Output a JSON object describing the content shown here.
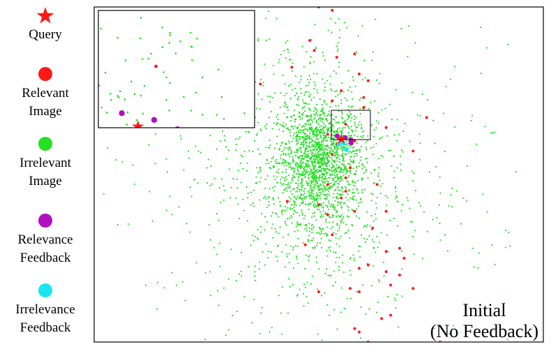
{
  "colors": {
    "query": "#ff1a1a",
    "relevant": "#ff1a1a",
    "irrelevant": "#22e022",
    "relevance_feedback": "#b010c0",
    "irrelevance_feedback": "#19e6ee"
  },
  "legend": {
    "items": [
      {
        "label_lines": [
          "Query"
        ],
        "marker": "star",
        "color": "#ff1a1a"
      },
      {
        "label_lines": [
          "Relevant",
          "Image"
        ],
        "marker": "circle",
        "color": "#ff1a1a"
      },
      {
        "label_lines": [
          "Irrelevant",
          "Image"
        ],
        "marker": "circle",
        "color": "#22e022"
      },
      {
        "label_lines": [
          "Relevance",
          "Feedback"
        ],
        "marker": "circle",
        "color": "#b010c0"
      },
      {
        "label_lines": [
          "Irrelevance",
          "Feedback"
        ],
        "marker": "circle",
        "color": "#19e6ee"
      }
    ]
  },
  "chart_data": {
    "type": "scatter",
    "title_lines": [
      "Initial",
      "(No Feedback)"
    ],
    "xlabel": "",
    "ylabel": "",
    "axes_ticks": false,
    "grid": false,
    "inset": {
      "shows": "zoomed view of region around query",
      "placement": "top-left"
    },
    "query": {
      "x": 0.55,
      "y": 0.605
    },
    "relevant": [
      [
        0.5,
        1.0
      ],
      [
        0.53,
        0.99
      ],
      [
        0.48,
        0.9
      ],
      [
        0.49,
        0.87
      ],
      [
        0.58,
        0.86
      ],
      [
        0.54,
        0.85
      ],
      [
        0.44,
        0.82
      ],
      [
        0.59,
        0.8
      ],
      [
        0.37,
        0.77
      ],
      [
        0.61,
        0.78
      ],
      [
        0.55,
        0.75
      ],
      [
        0.6,
        0.73
      ],
      [
        0.53,
        0.72
      ],
      [
        0.6,
        0.7
      ],
      [
        0.56,
        0.65
      ],
      [
        0.74,
        0.67
      ],
      [
        0.65,
        0.64
      ],
      [
        0.52,
        0.62
      ],
      [
        0.58,
        0.6
      ],
      [
        0.54,
        0.59
      ],
      [
        0.53,
        0.56
      ],
      [
        0.71,
        0.57
      ],
      [
        0.57,
        0.52
      ],
      [
        0.56,
        0.49
      ],
      [
        0.52,
        0.47
      ],
      [
        0.56,
        0.45
      ],
      [
        0.63,
        0.47
      ],
      [
        0.55,
        0.43
      ],
      [
        0.65,
        0.39
      ],
      [
        0.58,
        0.39
      ],
      [
        0.43,
        0.42
      ],
      [
        0.5,
        0.41
      ],
      [
        0.52,
        0.38
      ],
      [
        0.62,
        0.34
      ],
      [
        0.53,
        0.32
      ],
      [
        0.68,
        0.28
      ],
      [
        0.47,
        0.29
      ],
      [
        0.65,
        0.27
      ],
      [
        0.69,
        0.25
      ],
      [
        0.61,
        0.23
      ],
      [
        0.65,
        0.21
      ],
      [
        0.68,
        0.2
      ],
      [
        0.59,
        0.22
      ],
      [
        0.66,
        0.17
      ],
      [
        0.71,
        0.16
      ],
      [
        0.57,
        0.16
      ],
      [
        0.59,
        0.15
      ],
      [
        0.5,
        0.15
      ],
      [
        0.66,
        0.08
      ],
      [
        0.64,
        0.07
      ],
      [
        0.58,
        0.04
      ],
      [
        0.59,
        0.03
      ],
      [
        0.61,
        0.0
      ],
      [
        0.77,
        0.0
      ]
    ],
    "relevance_feedback": [
      [
        0.541,
        0.615
      ],
      [
        0.559,
        0.61
      ],
      [
        0.572,
        0.603
      ],
      [
        0.572,
        0.594
      ]
    ],
    "irrelevance_feedback": [
      [
        0.545,
        0.59
      ],
      [
        0.555,
        0.594
      ],
      [
        0.562,
        0.574
      ]
    ],
    "irrelevant_distribution": {
      "clusters": [
        {
          "center": [
            0.5,
            0.54
          ],
          "spread": [
            0.045,
            0.09
          ],
          "count": 1500
        },
        {
          "center": [
            0.48,
            0.5
          ],
          "spread": [
            0.11,
            0.22
          ],
          "count": 800
        },
        {
          "center": [
            0.5,
            0.5
          ],
          "spread": [
            0.25,
            0.3
          ],
          "count": 320
        }
      ]
    }
  }
}
